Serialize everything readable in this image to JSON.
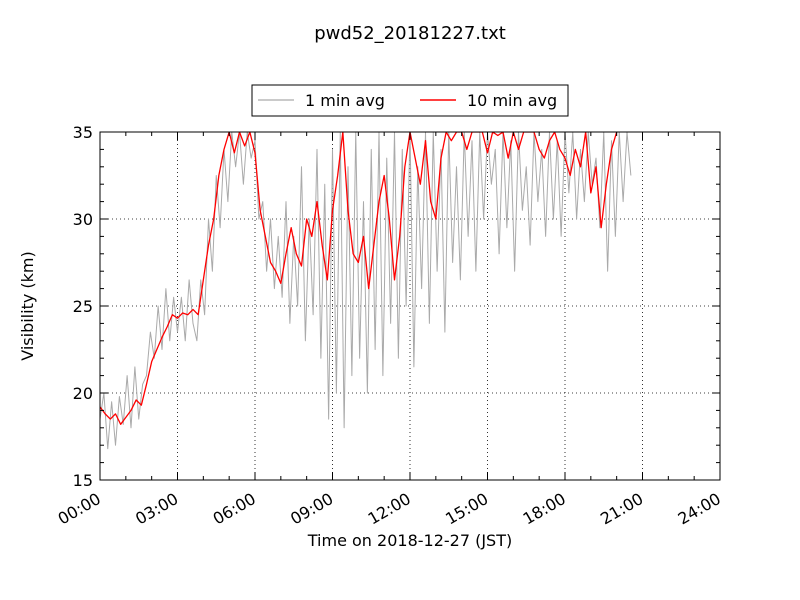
{
  "chart_data": {
    "type": "line",
    "title": "pwd52_20181227.txt",
    "xlabel": "Time on 2018-12-27 (JST)",
    "ylabel": "Visibility (km)",
    "xlim": [
      0,
      24
    ],
    "ylim": [
      15,
      35
    ],
    "x_tick_labels": [
      "00:00",
      "03:00",
      "06:00",
      "09:00",
      "12:00",
      "15:00",
      "18:00",
      "21:00",
      "24:00"
    ],
    "y_tick_labels": [
      "15",
      "20",
      "25",
      "30",
      "35"
    ],
    "grid": true,
    "legend_position": "top-center",
    "series": [
      {
        "name": "1 min avg",
        "color": "#aaaaaa",
        "x": [
          0.0,
          0.15,
          0.3,
          0.45,
          0.6,
          0.75,
          0.9,
          1.05,
          1.2,
          1.35,
          1.5,
          1.65,
          1.8,
          1.95,
          2.1,
          2.25,
          2.4,
          2.55,
          2.7,
          2.85,
          3.0,
          3.15,
          3.3,
          3.45,
          3.6,
          3.75,
          3.9,
          4.05,
          4.2,
          4.35,
          4.5,
          4.65,
          4.8,
          4.95,
          5.1,
          5.25,
          5.4,
          5.55,
          5.7,
          5.85,
          6.0,
          6.15,
          6.3,
          6.45,
          6.6,
          6.75,
          6.9,
          7.05,
          7.2,
          7.35,
          7.5,
          7.65,
          7.8,
          7.95,
          8.1,
          8.25,
          8.4,
          8.55,
          8.7,
          8.85,
          9.0,
          9.15,
          9.3,
          9.45,
          9.6,
          9.75,
          9.9,
          10.05,
          10.2,
          10.35,
          10.5,
          10.65,
          10.8,
          10.95,
          11.1,
          11.25,
          11.4,
          11.55,
          11.7,
          11.85,
          12.0,
          12.15,
          12.3,
          12.45,
          12.6,
          12.75,
          12.9,
          13.05,
          13.2,
          13.35,
          13.5,
          13.65,
          13.8,
          13.95,
          14.1,
          14.25,
          14.4,
          14.55,
          14.7,
          14.85,
          15.0,
          15.15,
          15.3,
          15.45,
          15.6,
          15.75,
          15.9,
          16.05,
          16.2,
          16.35,
          16.5,
          16.65,
          16.8,
          16.95,
          17.1,
          17.25,
          17.4,
          17.55,
          17.7,
          17.85,
          18.0,
          18.15,
          18.3,
          18.45,
          18.6,
          18.75,
          18.9,
          19.05,
          19.2,
          19.35,
          19.5,
          19.65,
          19.8,
          19.95,
          20.1,
          20.25,
          20.4,
          20.55
        ],
        "values": [
          18.5,
          20.0,
          16.8,
          19.5,
          17.0,
          19.8,
          18.2,
          21.0,
          18.0,
          21.5,
          18.5,
          20.5,
          21.0,
          23.5,
          22.0,
          25.0,
          22.5,
          26.0,
          23.0,
          25.5,
          23.5,
          25.5,
          23.0,
          26.5,
          24.0,
          23.0,
          26.5,
          24.5,
          30.0,
          27.0,
          32.5,
          29.5,
          34.0,
          31.0,
          35.0,
          33.0,
          35.0,
          32.0,
          35.0,
          33.5,
          34.5,
          30.0,
          31.0,
          27.0,
          30.0,
          26.0,
          29.0,
          25.5,
          31.0,
          24.0,
          29.0,
          25.0,
          33.0,
          23.0,
          30.0,
          24.5,
          34.0,
          22.0,
          32.0,
          18.5,
          34.0,
          20.0,
          35.0,
          18.0,
          33.0,
          21.0,
          35.0,
          22.0,
          31.0,
          20.0,
          34.0,
          22.5,
          35.0,
          21.0,
          33.5,
          24.0,
          35.0,
          22.0,
          34.0,
          25.0,
          35.0,
          21.5,
          33.0,
          26.0,
          35.0,
          24.0,
          35.0,
          27.0,
          34.0,
          23.5,
          35.0,
          27.5,
          33.0,
          26.5,
          35.0,
          29.0,
          34.5,
          27.0,
          35.0,
          30.0,
          35.0,
          32.0,
          34.0,
          28.0,
          35.0,
          29.5,
          34.5,
          27.0,
          35.0,
          30.5,
          33.0,
          28.5,
          35.0,
          31.0,
          34.0,
          29.0,
          35.0,
          30.0,
          34.5,
          29.0,
          35.0,
          31.5,
          35.0,
          30.0,
          34.0,
          31.0,
          35.0,
          32.0,
          33.5,
          29.5,
          35.0,
          27.0,
          34.5,
          29.0,
          35.0,
          31.0,
          35.0,
          32.5
        ]
      },
      {
        "name": "10 min avg",
        "color": "#ff0000",
        "x": [
          0.0,
          0.2,
          0.4,
          0.6,
          0.8,
          1.0,
          1.2,
          1.4,
          1.6,
          1.8,
          2.0,
          2.2,
          2.4,
          2.6,
          2.8,
          3.0,
          3.2,
          3.4,
          3.6,
          3.8,
          4.0,
          4.2,
          4.4,
          4.6,
          4.8,
          5.0,
          5.2,
          5.4,
          5.6,
          5.8,
          6.0,
          6.2,
          6.4,
          6.6,
          6.8,
          7.0,
          7.2,
          7.4,
          7.6,
          7.8,
          8.0,
          8.2,
          8.4,
          8.6,
          8.8,
          9.0,
          9.2,
          9.4,
          9.6,
          9.8,
          10.0,
          10.2,
          10.4,
          10.6,
          10.8,
          11.0,
          11.2,
          11.4,
          11.6,
          11.8,
          12.0,
          12.2,
          12.4,
          12.6,
          12.8,
          13.0,
          13.2,
          13.4,
          13.6,
          13.8,
          14.0,
          14.2,
          14.4,
          14.6,
          14.8,
          15.0,
          15.2,
          15.4,
          15.6,
          15.8,
          16.0,
          16.2,
          16.4,
          16.6,
          16.8,
          17.0,
          17.2,
          17.4,
          17.6,
          17.8,
          18.0,
          18.2,
          18.4,
          18.6,
          18.8,
          19.0,
          19.2,
          19.4,
          19.6,
          19.8,
          20.0
        ],
        "values": [
          19.2,
          18.8,
          18.5,
          18.8,
          18.2,
          18.6,
          19.0,
          19.6,
          19.3,
          20.5,
          21.8,
          22.5,
          23.2,
          23.8,
          24.5,
          24.3,
          24.6,
          24.5,
          24.8,
          24.5,
          26.5,
          28.5,
          30.0,
          32.5,
          34.0,
          35.0,
          33.8,
          35.0,
          34.2,
          35.0,
          33.8,
          30.5,
          29.0,
          27.5,
          27.0,
          26.3,
          28.0,
          29.5,
          28.0,
          27.3,
          30.0,
          29.0,
          31.0,
          28.5,
          26.5,
          30.5,
          32.5,
          35.0,
          30.5,
          28.0,
          27.5,
          29.0,
          26.0,
          28.5,
          31.0,
          32.5,
          30.0,
          26.5,
          29.0,
          33.0,
          35.0,
          33.5,
          32.0,
          34.5,
          31.0,
          30.0,
          33.5,
          35.0,
          34.5,
          35.0,
          35.0,
          34.0,
          35.0,
          35.0,
          35.0,
          33.8,
          35.0,
          34.8,
          35.0,
          33.5,
          35.0,
          34.0,
          35.0,
          35.0,
          35.0,
          34.0,
          33.5,
          34.5,
          35.0,
          34.0,
          33.5,
          32.5,
          34.0,
          33.0,
          35.0,
          31.5,
          33.0,
          29.5,
          32.0,
          34.0,
          35.0
        ]
      }
    ]
  }
}
